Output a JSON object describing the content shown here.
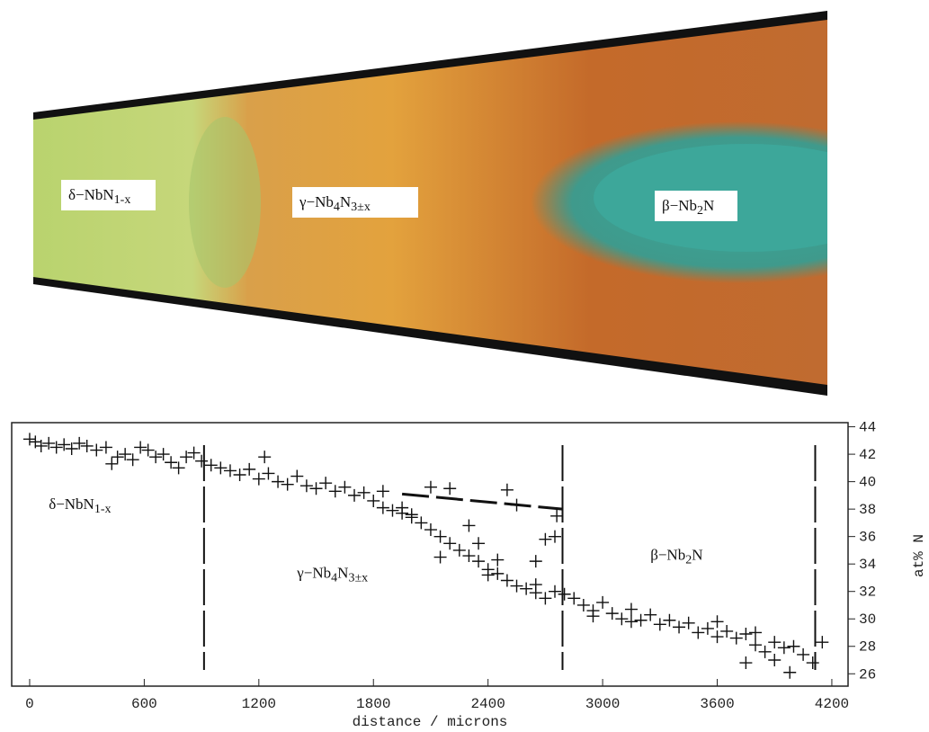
{
  "micrograph": {
    "labels": [
      [
        {
          "t": "δ−NbN"
        },
        {
          "t": "1-x",
          "sub": true
        }
      ],
      [
        {
          "t": "γ−Nb"
        },
        {
          "t": "4",
          "sub": true
        },
        {
          "t": "N"
        },
        {
          "t": "3±x",
          "sub": true
        }
      ],
      [
        {
          "t": "β−Nb"
        },
        {
          "t": "2",
          "sub": true
        },
        {
          "t": "N"
        }
      ]
    ]
  },
  "chart_data": {
    "type": "scatter",
    "xlabel": "distance / microns",
    "ylabel": "at% N",
    "color": "#111111",
    "x": [
      0,
      30,
      60,
      100,
      140,
      180,
      220,
      260,
      300,
      350,
      400,
      430,
      460,
      500,
      540,
      580,
      620,
      660,
      700,
      740,
      780,
      820,
      860,
      900,
      950,
      1000,
      1050,
      1100,
      1150,
      1200,
      1250,
      1300,
      1350,
      1400,
      1450,
      1500,
      1550,
      1600,
      1650,
      1700,
      1750,
      1800,
      1850,
      1900,
      1950,
      2000,
      2050,
      2100,
      2150,
      2200,
      2250,
      2300,
      2350,
      2400,
      2450,
      2500,
      2550,
      2600,
      2650,
      2700,
      2750,
      1230,
      1850,
      2100,
      2150,
      2200,
      2300,
      2350,
      2400,
      2450,
      2500,
      2550,
      2650,
      2700,
      2760,
      2750,
      2650,
      1950,
      2000,
      2800,
      2850,
      2900,
      2950,
      3000,
      3050,
      3100,
      3150,
      3200,
      3250,
      3300,
      3350,
      3400,
      3450,
      3500,
      3550,
      3600,
      3650,
      3700,
      3750,
      3800,
      3850,
      3900,
      3950,
      4000,
      4050,
      4100,
      4150,
      3750,
      3900,
      3980,
      2950,
      3150,
      3800,
      3600
    ],
    "values": [
      43.1,
      42.9,
      42.6,
      42.8,
      42.5,
      42.7,
      42.4,
      42.8,
      42.6,
      42.3,
      42.5,
      41.3,
      41.8,
      42.0,
      41.6,
      42.5,
      42.3,
      41.8,
      42.0,
      41.4,
      41.0,
      41.8,
      42.1,
      41.5,
      41.2,
      41.0,
      40.8,
      40.5,
      40.9,
      40.2,
      40.6,
      40.0,
      39.8,
      40.4,
      39.7,
      39.5,
      39.9,
      39.3,
      39.6,
      39.0,
      39.2,
      38.6,
      38.1,
      37.9,
      37.7,
      37.4,
      37.0,
      36.5,
      36.0,
      35.5,
      35.0,
      34.6,
      34.2,
      33.6,
      33.3,
      32.8,
      32.4,
      32.2,
      31.9,
      31.5,
      32.0,
      41.8,
      39.3,
      39.6,
      34.5,
      39.5,
      36.8,
      35.5,
      33.2,
      34.3,
      39.4,
      38.3,
      34.2,
      35.8,
      37.5,
      36.0,
      32.5,
      38.1,
      37.6,
      31.8,
      31.5,
      31.0,
      30.6,
      31.2,
      30.4,
      30.0,
      30.7,
      29.9,
      30.3,
      29.6,
      29.9,
      29.4,
      29.7,
      29.0,
      29.3,
      29.8,
      29.1,
      28.6,
      28.9,
      28.1,
      27.6,
      28.3,
      27.9,
      28.0,
      27.4,
      26.8,
      28.3,
      26.8,
      27.0,
      26.1,
      30.2,
      29.8,
      29.0,
      28.7
    ],
    "boundaries": [
      913,
      2790,
      4113
    ],
    "trend": {
      "x": [
        1950,
        2790
      ],
      "y": [
        39.1,
        38.0
      ]
    },
    "region_labels": [
      {
        "x": 100,
        "y": 38,
        "parts": [
          {
            "t": "δ−NbN"
          },
          {
            "t": "1-x",
            "sub": true
          }
        ]
      },
      {
        "x": 1400,
        "y": 33,
        "parts": [
          {
            "t": "γ−Nb"
          },
          {
            "t": "4",
            "sub": true
          },
          {
            "t": "N"
          },
          {
            "t": "3±x",
            "sub": true
          }
        ]
      },
      {
        "x": 3250,
        "y": 34.3,
        "parts": [
          {
            "t": "β−Nb"
          },
          {
            "t": "2",
            "sub": true
          },
          {
            "t": "N"
          }
        ]
      }
    ],
    "xlim": [
      -94,
      4285
    ],
    "ylim": [
      25.1,
      44.3
    ],
    "xticks": [
      0,
      600,
      1200,
      1800,
      2400,
      3000,
      3600,
      4200
    ],
    "yticks": [
      26,
      28,
      30,
      32,
      34,
      36,
      38,
      40,
      42,
      44
    ]
  }
}
